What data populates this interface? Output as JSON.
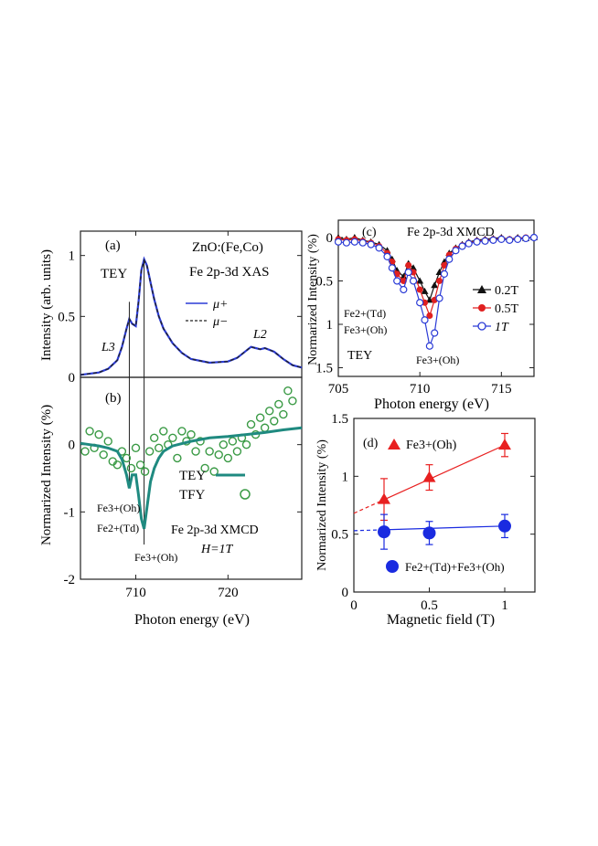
{
  "colors": {
    "xas_plus": "#2b3bd6",
    "xas_minus": "#222222",
    "tey": "#1f8a80",
    "tfy": "#3a9a45",
    "b02": "#111111",
    "b05": "#e02020",
    "b1": "#2b3bd6",
    "fe3": "#e82020",
    "fe_mix": "#1a2be0"
  },
  "chart_data": [
    {
      "panel": "(a)",
      "type": "line",
      "ylabel": "Intensity (arb. units)",
      "xlim": [
        704,
        728
      ],
      "ylim": [
        0,
        1.2
      ],
      "xticks": [
        "710",
        "720"
      ],
      "yticks": [
        "0",
        "0.5",
        "1"
      ],
      "texts": {
        "sample": "ZnO:(Fe,Co)",
        "mode": "TEY",
        "title": "Fe 2p-3d XAS",
        "L3": "L3",
        "L2": "L2"
      },
      "legend": [
        "μ+",
        "μ−"
      ],
      "series": [
        {
          "name": "μ+",
          "x": [
            704,
            706,
            707,
            708,
            708.5,
            709,
            709.3,
            709.6,
            710,
            710.3,
            710.6,
            710.9,
            711.2,
            711.6,
            712,
            712.5,
            713,
            714,
            715,
            716,
            718,
            720,
            721,
            722,
            722.5,
            723,
            723.5,
            724,
            725,
            726,
            727,
            728
          ],
          "y": [
            0.02,
            0.04,
            0.07,
            0.14,
            0.25,
            0.4,
            0.48,
            0.44,
            0.42,
            0.62,
            0.88,
            0.97,
            0.92,
            0.78,
            0.64,
            0.5,
            0.4,
            0.28,
            0.2,
            0.15,
            0.12,
            0.13,
            0.16,
            0.22,
            0.25,
            0.24,
            0.23,
            0.24,
            0.21,
            0.15,
            0.1,
            0.08
          ]
        },
        {
          "name": "μ−",
          "x": [
            704,
            706,
            707,
            708,
            708.5,
            709,
            709.3,
            709.6,
            710,
            710.3,
            710.6,
            710.9,
            711.2,
            711.6,
            712,
            712.5,
            713,
            714,
            715,
            716,
            718,
            720,
            721,
            722,
            722.5,
            723,
            723.5,
            724,
            725,
            726,
            727,
            728
          ],
          "y": [
            0.02,
            0.04,
            0.07,
            0.14,
            0.25,
            0.4,
            0.48,
            0.44,
            0.42,
            0.62,
            0.88,
            0.96,
            0.92,
            0.78,
            0.64,
            0.5,
            0.4,
            0.28,
            0.2,
            0.15,
            0.12,
            0.13,
            0.16,
            0.22,
            0.25,
            0.24,
            0.23,
            0.24,
            0.21,
            0.15,
            0.1,
            0.08
          ]
        }
      ]
    },
    {
      "panel": "(b)",
      "type": "line",
      "xlabel": "Photon energy (eV)",
      "ylabel": "Normarized Intensity (%)",
      "xlim": [
        704,
        728
      ],
      "ylim": [
        -2,
        1
      ],
      "xticks": [
        "710",
        "720"
      ],
      "yticks": [
        "-2",
        "-1",
        "0"
      ],
      "texts": {
        "title": "Fe 2p-3d  XMCD",
        "field": "H=1T",
        "fe3_oh_a": "Fe3+(Oh)",
        "fe2_td": "Fe2+(Td)",
        "fe3_oh_b": "Fe3+(Oh)"
      },
      "legend": [
        "TEY",
        "TFY"
      ],
      "series": [
        {
          "name": "TEY",
          "type": "line",
          "x": [
            704,
            705,
            706,
            707,
            708,
            708.5,
            709,
            709.3,
            709.6,
            710,
            710.3,
            710.6,
            710.9,
            711.2,
            711.6,
            712,
            712.5,
            713,
            714,
            716,
            718,
            720,
            722,
            724,
            726,
            728
          ],
          "y": [
            0.02,
            0.0,
            -0.02,
            -0.05,
            -0.1,
            -0.22,
            -0.45,
            -0.65,
            -0.45,
            -0.45,
            -0.75,
            -1.1,
            -1.25,
            -0.95,
            -0.55,
            -0.35,
            -0.2,
            -0.1,
            -0.02,
            0.05,
            0.1,
            0.12,
            0.15,
            0.18,
            0.22,
            0.25
          ]
        },
        {
          "name": "TFY",
          "type": "scatter",
          "x": [
            704.5,
            705,
            705.5,
            706,
            706.5,
            707,
            707.5,
            708,
            708.5,
            709,
            709.5,
            710,
            710.5,
            711,
            711.5,
            712,
            712.5,
            713,
            713.5,
            714,
            714.5,
            715,
            715.5,
            716,
            716.5,
            717,
            717.5,
            718,
            718.5,
            719,
            719.5,
            720,
            720.5,
            721,
            721.5,
            722,
            722.5,
            723,
            723.5,
            724,
            724.5,
            725,
            725.5,
            726,
            726.5,
            727
          ],
          "y": [
            -0.1,
            0.2,
            -0.05,
            0.15,
            -0.15,
            0.05,
            -0.25,
            -0.3,
            -0.1,
            -0.2,
            -0.35,
            -0.05,
            -0.3,
            -0.4,
            -0.1,
            0.1,
            -0.05,
            0.2,
            0.0,
            0.1,
            -0.2,
            0.2,
            0.05,
            0.15,
            -0.1,
            0.05,
            -0.35,
            -0.1,
            -0.4,
            -0.15,
            0.0,
            -0.2,
            0.05,
            -0.1,
            0.1,
            0.0,
            0.3,
            0.15,
            0.4,
            0.25,
            0.5,
            0.35,
            0.6,
            0.45,
            0.8,
            0.65
          ]
        }
      ]
    },
    {
      "panel": "(c)",
      "type": "line",
      "xlabel": "Photon energy (eV)",
      "ylabel": "Normarized Intensity (%)",
      "xlim": [
        705,
        717
      ],
      "ylim": [
        1.6,
        -0.2
      ],
      "y_inverted": true,
      "xticks": [
        "705",
        "710",
        "715"
      ],
      "yticks": [
        "0",
        "0.5",
        "1",
        "1.5"
      ],
      "texts": {
        "title": "Fe 2p-3d  XMCD",
        "mode": "TEY",
        "fe2_td": "Fe2+(Td)",
        "fe3_oh_a": "Fe3+(Oh)",
        "fe3_oh_b": "Fe3+(Oh)"
      },
      "legend": [
        "0.2T",
        "0.5T",
        "1T"
      ],
      "series": [
        {
          "name": "0.2T",
          "x": [
            705,
            705.5,
            706,
            706.5,
            707,
            707.5,
            708,
            708.3,
            708.6,
            709,
            709.3,
            709.6,
            710,
            710.3,
            710.6,
            710.9,
            711.2,
            711.5,
            711.8,
            712.2,
            712.6,
            713,
            713.5,
            714,
            714.5,
            715,
            715.5,
            716,
            716.5,
            717
          ],
          "y": [
            0.0,
            0.02,
            0.0,
            0.03,
            0.05,
            0.08,
            0.15,
            0.25,
            0.38,
            0.45,
            0.3,
            0.35,
            0.5,
            0.62,
            0.72,
            0.55,
            0.4,
            0.28,
            0.18,
            0.12,
            0.08,
            0.05,
            0.03,
            0.02,
            0.01,
            0.0,
            0.02,
            0.0,
            0.01,
            0.0
          ]
        },
        {
          "name": "0.5T",
          "x": [
            705,
            705.5,
            706,
            706.5,
            707,
            707.5,
            708,
            708.3,
            708.6,
            709,
            709.3,
            709.6,
            710,
            710.3,
            710.6,
            710.9,
            711.2,
            711.5,
            711.8,
            712.2,
            712.6,
            713,
            713.5,
            714,
            714.5,
            715,
            715.5,
            716,
            716.5,
            717
          ],
          "y": [
            0.02,
            0.03,
            0.02,
            0.04,
            0.06,
            0.1,
            0.18,
            0.28,
            0.42,
            0.5,
            0.32,
            0.4,
            0.6,
            0.75,
            0.9,
            0.72,
            0.5,
            0.32,
            0.2,
            0.13,
            0.09,
            0.06,
            0.04,
            0.03,
            0.02,
            0.01,
            0.02,
            0.01,
            0.0,
            0.0
          ]
        },
        {
          "name": "1T",
          "x": [
            705,
            705.5,
            706,
            706.5,
            707,
            707.5,
            708,
            708.3,
            708.6,
            709,
            709.3,
            709.6,
            710,
            710.3,
            710.6,
            710.9,
            711.2,
            711.5,
            711.8,
            712.2,
            712.6,
            713,
            713.5,
            714,
            714.5,
            715,
            715.5,
            716,
            716.5,
            717
          ],
          "y": [
            0.05,
            0.06,
            0.05,
            0.06,
            0.08,
            0.12,
            0.22,
            0.35,
            0.5,
            0.6,
            0.4,
            0.5,
            0.75,
            0.95,
            1.25,
            1.1,
            0.7,
            0.42,
            0.25,
            0.15,
            0.1,
            0.07,
            0.05,
            0.04,
            0.03,
            0.02,
            0.03,
            0.02,
            0.01,
            0.0
          ]
        }
      ]
    },
    {
      "panel": "(d)",
      "type": "scatter",
      "xlabel": "Magnetic field (T)",
      "ylabel": "Normarized Intensity (%)",
      "xlim": [
        0,
        1.2
      ],
      "ylim": [
        0,
        1.5
      ],
      "xticks": [
        "0",
        "0.5",
        "1"
      ],
      "yticks": [
        "0",
        "0.5",
        "1",
        "1.5"
      ],
      "series": [
        {
          "name": "Fe3+(Oh)",
          "x": [
            0.2,
            0.5,
            1.0
          ],
          "y": [
            0.8,
            0.99,
            1.27
          ],
          "err": [
            0.18,
            0.11,
            0.1
          ],
          "fit": [
            [
              0,
              0.68
            ],
            [
              1.0,
              1.27
            ]
          ]
        },
        {
          "name": "Fe2+(Td)+Fe3+(Oh)",
          "x": [
            0.2,
            0.5,
            1.0
          ],
          "y": [
            0.52,
            0.51,
            0.57
          ],
          "err": [
            0.15,
            0.1,
            0.1
          ],
          "fit": [
            [
              0,
              0.53
            ],
            [
              1.0,
              0.57
            ]
          ]
        }
      ]
    }
  ]
}
